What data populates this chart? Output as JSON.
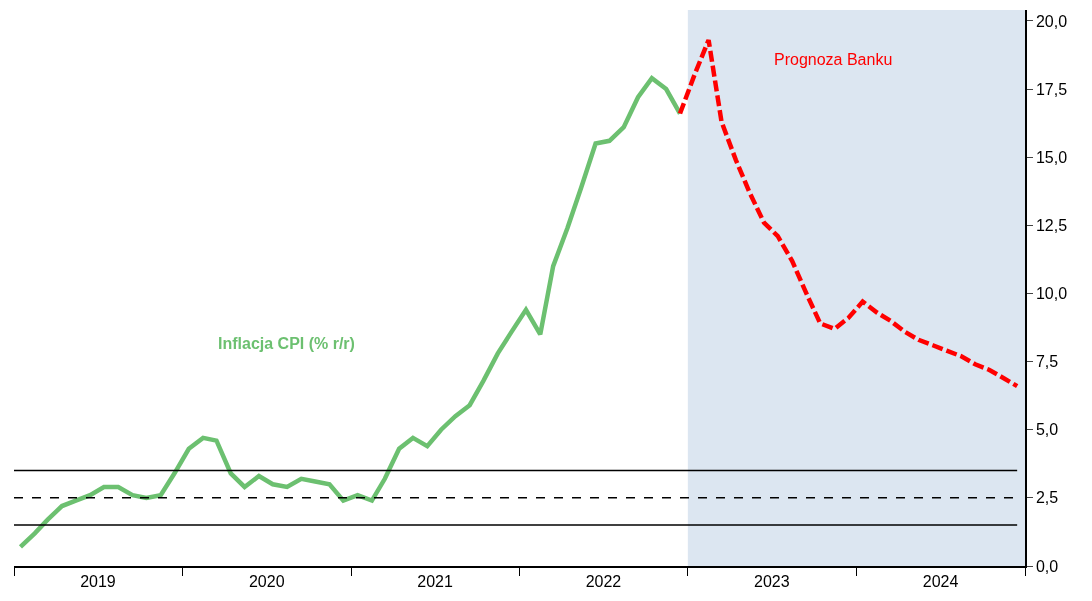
{
  "chart_data": {
    "type": "line",
    "xlim": [
      "2019-01-01",
      "2025-01-01"
    ],
    "xticks": [
      {
        "value": "2019-01-01",
        "label": null
      },
      {
        "value": "2019-07-02",
        "label": "2019"
      },
      {
        "value": "2020-01-01",
        "label": null
      },
      {
        "value": "2020-07-02",
        "label": "2020"
      },
      {
        "value": "2021-01-01",
        "label": null
      },
      {
        "value": "2021-07-02",
        "label": "2021"
      },
      {
        "value": "2022-01-01",
        "label": null
      },
      {
        "value": "2022-07-02",
        "label": "2022"
      },
      {
        "value": "2023-01-01",
        "label": null
      },
      {
        "value": "2023-07-02",
        "label": "2023"
      },
      {
        "value": "2024-01-01",
        "label": null
      },
      {
        "value": "2024-07-02",
        "label": "2024"
      },
      {
        "value": "2025-01-01",
        "label": null
      }
    ],
    "ylim": [
      0,
      20.4
    ],
    "yticks": [
      {
        "value": 0,
        "label": "0,0"
      },
      {
        "value": 2.5,
        "label": "2,5"
      },
      {
        "value": 5,
        "label": "5,0"
      },
      {
        "value": 7.5,
        "label": "7,5"
      },
      {
        "value": 10,
        "label": "10,0"
      },
      {
        "value": 12.5,
        "label": "12,5"
      },
      {
        "value": 15,
        "label": "15,0"
      },
      {
        "value": 17.5,
        "label": "17,5"
      },
      {
        "value": 20,
        "label": "20,0"
      }
    ],
    "grid": false,
    "legend": false,
    "series": [
      {
        "name": "Inflacja CPI (% r/r)",
        "color": "#6cc070",
        "line_style": "solid",
        "x": [
          "2019-01-15",
          "2019-02-15",
          "2019-03-15",
          "2019-04-15",
          "2019-05-15",
          "2019-06-15",
          "2019-07-15",
          "2019-08-15",
          "2019-09-15",
          "2019-10-15",
          "2019-11-15",
          "2019-12-15",
          "2020-01-15",
          "2020-02-15",
          "2020-03-15",
          "2020-04-15",
          "2020-05-15",
          "2020-06-15",
          "2020-07-15",
          "2020-08-15",
          "2020-09-15",
          "2020-10-15",
          "2020-11-15",
          "2020-12-15",
          "2021-01-15",
          "2021-02-15",
          "2021-03-15",
          "2021-04-15",
          "2021-05-15",
          "2021-06-15",
          "2021-07-15",
          "2021-08-15",
          "2021-09-15",
          "2021-10-15",
          "2021-11-15",
          "2021-12-15",
          "2022-01-15",
          "2022-02-15",
          "2022-03-15",
          "2022-04-15",
          "2022-05-15",
          "2022-06-15",
          "2022-07-15",
          "2022-08-15",
          "2022-09-15",
          "2022-10-15",
          "2022-11-15",
          "2022-12-15"
        ],
        "values": [
          0.7,
          1.2,
          1.7,
          2.2,
          2.4,
          2.6,
          2.9,
          2.9,
          2.6,
          2.5,
          2.6,
          3.4,
          4.3,
          4.7,
          4.6,
          3.4,
          2.9,
          3.3,
          3.0,
          2.9,
          3.2,
          3.1,
          3.0,
          2.4,
          2.6,
          2.4,
          3.2,
          4.3,
          4.7,
          4.4,
          5.0,
          5.5,
          5.9,
          6.8,
          7.8,
          8.6,
          9.4,
          8.5,
          11.0,
          12.4,
          13.9,
          15.5,
          15.6,
          16.1,
          17.2,
          17.9,
          17.5,
          16.6
        ]
      },
      {
        "color": "#ff0000",
        "line_style": "dashed",
        "x": [
          "2022-12-15",
          "2023-01-15",
          "2023-02-15",
          "2023-03-15",
          "2023-04-15",
          "2023-05-15",
          "2023-06-15",
          "2023-07-15",
          "2023-08-15",
          "2023-09-15",
          "2023-10-15",
          "2023-11-15",
          "2023-12-15",
          "2024-01-15",
          "2024-02-15",
          "2024-03-15",
          "2024-04-15",
          "2024-05-15",
          "2024-06-15",
          "2024-07-15",
          "2024-08-15",
          "2024-09-15",
          "2024-10-15",
          "2024-11-15",
          "2024-12-15"
        ],
        "values": [
          16.6,
          18.0,
          19.3,
          16.3,
          14.9,
          13.7,
          12.6,
          12.1,
          11.2,
          10.0,
          8.9,
          8.7,
          9.1,
          9.7,
          9.3,
          9.0,
          8.6,
          8.3,
          8.1,
          7.9,
          7.7,
          7.4,
          7.2,
          6.9,
          6.6
        ]
      }
    ],
    "bands": [
      {
        "axis": "x",
        "from": "2023-01-01",
        "to": "2025-01-01",
        "color": "#dce6f1"
      }
    ],
    "ref_lines": [
      {
        "axis": "y",
        "value": 3.5,
        "color": "#000000",
        "line_style": "solid"
      },
      {
        "axis": "y",
        "value": 2.5,
        "color": "#000000",
        "line_style": "dashed"
      },
      {
        "axis": "y",
        "value": 1.5,
        "color": "#000000",
        "line_style": "solid"
      }
    ],
    "annotations": [
      "Prognoza Banku"
    ]
  }
}
